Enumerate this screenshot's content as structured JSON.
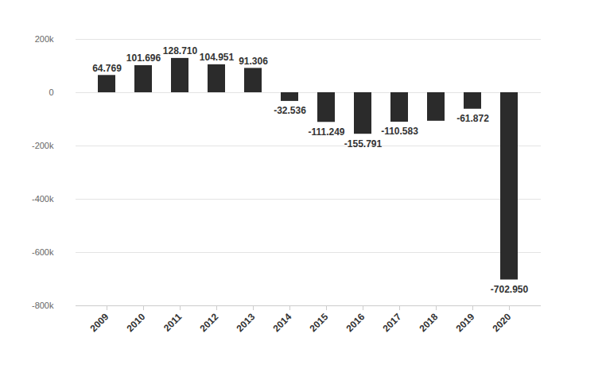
{
  "chart_data": {
    "type": "bar",
    "categories": [
      "2009",
      "2010",
      "2011",
      "2012",
      "2013",
      "2014",
      "2015",
      "2016",
      "2017",
      "2018",
      "2019",
      "2020"
    ],
    "values": [
      64769,
      101696,
      128710,
      104951,
      91306,
      -32536,
      -111249,
      -155791,
      -110583,
      -107000,
      -61872,
      -702950
    ],
    "value_labels": [
      "64.769",
      "101.696",
      "128.710",
      "104.951",
      "91.306",
      "-32.536",
      "-111.249",
      "-155.791",
      "-110.583",
      null,
      "-61.872",
      "-702.950"
    ],
    "color": "#2b2b2b",
    "ylim": [
      -800000,
      200000
    ],
    "yticks": [
      {
        "value": -800000,
        "label": "-800k"
      },
      {
        "value": -600000,
        "label": "-600k"
      },
      {
        "value": -400000,
        "label": "-400k"
      },
      {
        "value": -200000,
        "label": "-200k"
      },
      0,
      {
        "value": 200000,
        "label": "200k"
      }
    ],
    "grid": true,
    "data_labels": true
  }
}
